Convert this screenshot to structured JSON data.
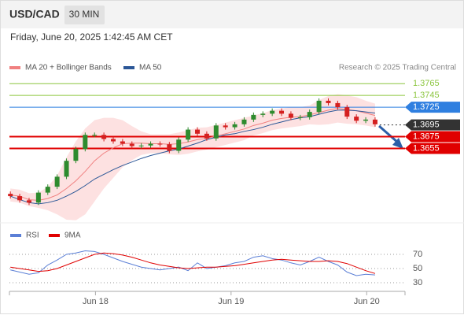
{
  "header": {
    "symbol": "USD/CAD",
    "timeframe": "30 MIN",
    "datetime": "Friday, June 20, 2025 1:42:45 AM CET",
    "credit": "Research © 2025 Trading Central"
  },
  "chart_data": [
    {
      "type": "candlestick",
      "up_color": "#2e8b2e",
      "down_color": "#d42020",
      "open": [
        1.3578,
        1.3574,
        1.3567,
        1.3563,
        1.358,
        1.359,
        1.3607,
        1.3634,
        1.3654,
        1.3678,
        1.3678,
        1.3671,
        1.3667,
        1.3663,
        1.3659,
        1.366,
        1.3663,
        1.3662,
        1.3651,
        1.367,
        1.3687,
        1.368,
        1.3672,
        1.3694,
        1.3691,
        1.3696,
        1.3704,
        1.3712,
        1.3714,
        1.3719,
        1.3714,
        1.3707,
        1.3708,
        1.3717,
        1.3736,
        1.3732,
        1.3725,
        1.3709,
        1.3702,
        1.3704
      ],
      "high": [
        1.3582,
        1.3578,
        1.3571,
        1.3584,
        1.3594,
        1.3611,
        1.3638,
        1.3658,
        1.3682,
        1.3682,
        1.3682,
        1.3675,
        1.3671,
        1.3667,
        1.3664,
        1.3667,
        1.3667,
        1.3666,
        1.3674,
        1.3691,
        1.3691,
        1.3684,
        1.3698,
        1.3698,
        1.37,
        1.3708,
        1.3716,
        1.3718,
        1.3723,
        1.3723,
        1.3718,
        1.3712,
        1.3721,
        1.374,
        1.374,
        1.3736,
        1.3729,
        1.3713,
        1.3708,
        1.3708
      ],
      "low": [
        1.357,
        1.3563,
        1.3559,
        1.3559,
        1.3576,
        1.3586,
        1.3603,
        1.363,
        1.365,
        1.3674,
        1.3667,
        1.3663,
        1.3659,
        1.3655,
        1.3655,
        1.3656,
        1.3658,
        1.3647,
        1.3647,
        1.3666,
        1.3676,
        1.3668,
        1.3668,
        1.3687,
        1.3687,
        1.3692,
        1.37,
        1.3708,
        1.371,
        1.371,
        1.3703,
        1.3703,
        1.3704,
        1.3713,
        1.3728,
        1.3721,
        1.3705,
        1.3698,
        1.3698,
        1.3692
      ],
      "close": [
        1.3574,
        1.3567,
        1.3563,
        1.358,
        1.359,
        1.3607,
        1.3634,
        1.3654,
        1.3678,
        1.3678,
        1.3671,
        1.3667,
        1.3663,
        1.3659,
        1.366,
        1.3663,
        1.3662,
        1.3651,
        1.367,
        1.3687,
        1.368,
        1.3672,
        1.3694,
        1.3691,
        1.3696,
        1.3704,
        1.3712,
        1.3714,
        1.3719,
        1.3714,
        1.3707,
        1.3708,
        1.3717,
        1.3736,
        1.3732,
        1.3725,
        1.3709,
        1.3702,
        1.3704,
        1.3696
      ],
      "overlays": [
        {
          "name": "MA 20 + Bollinger Bands",
          "color": "#f08080",
          "band_color": "#fcd9d9",
          "values": [
            1.3576,
            1.3574,
            1.3568,
            1.3567,
            1.357,
            1.3576,
            1.3587,
            1.36,
            1.3616,
            1.3634,
            1.3647,
            1.3656,
            1.3663,
            1.3664,
            1.3664,
            1.3663,
            1.3663,
            1.3662,
            1.3663,
            1.3666,
            1.367,
            1.3672,
            1.3676,
            1.368,
            1.3684,
            1.3688,
            1.3694,
            1.3698,
            1.3703,
            1.3706,
            1.3708,
            1.3709,
            1.3712,
            1.3716,
            1.372,
            1.3723,
            1.3721,
            1.3719,
            1.3715,
            1.3711
          ],
          "upper": [
            1.3587,
            1.3585,
            1.3579,
            1.358,
            1.359,
            1.3609,
            1.364,
            1.3667,
            1.3689,
            1.3703,
            1.3707,
            1.3707,
            1.3703,
            1.3693,
            1.3684,
            1.3679,
            1.3679,
            1.3679,
            1.3682,
            1.3686,
            1.369,
            1.3691,
            1.3695,
            1.3699,
            1.3703,
            1.3707,
            1.3711,
            1.3715,
            1.372,
            1.3723,
            1.3725,
            1.3725,
            1.3728,
            1.3737,
            1.3744,
            1.3747,
            1.3745,
            1.3742,
            1.3736,
            1.3731
          ],
          "lower": [
            1.3565,
            1.3563,
            1.3557,
            1.3554,
            1.355,
            1.3543,
            1.3534,
            1.3533,
            1.3543,
            1.3565,
            1.3587,
            1.3605,
            1.3623,
            1.3635,
            1.3644,
            1.3647,
            1.3647,
            1.3645,
            1.3644,
            1.3646,
            1.365,
            1.3653,
            1.3657,
            1.3661,
            1.3665,
            1.3669,
            1.3677,
            1.3681,
            1.3686,
            1.3689,
            1.3691,
            1.3693,
            1.3696,
            1.3695,
            1.3696,
            1.3699,
            1.3697,
            1.3696,
            1.3694,
            1.3691
          ]
        },
        {
          "name": "MA 50",
          "color": "#2b5797",
          "values": [
            1.3574,
            1.3568,
            1.3563,
            1.3561,
            1.3563,
            1.3567,
            1.3574,
            1.3582,
            1.3592,
            1.3603,
            1.3611,
            1.3619,
            1.3626,
            1.3632,
            1.3638,
            1.3643,
            1.3647,
            1.3651,
            1.3654,
            1.3659,
            1.3664,
            1.367,
            1.3674,
            1.3678,
            1.368,
            1.3684,
            1.3687,
            1.3691,
            1.3696,
            1.37,
            1.3704,
            1.3707,
            1.3709,
            1.3713,
            1.3717,
            1.372,
            1.372,
            1.3719,
            1.3717,
            1.3715
          ]
        }
      ],
      "levels": [
        {
          "value": 1.3765,
          "color": "#8cc63f",
          "boxed": false,
          "dotted": false
        },
        {
          "value": 1.3745,
          "color": "#8cc63f",
          "boxed": false,
          "dotted": false
        },
        {
          "value": 1.3725,
          "color": "#2f7fe0",
          "boxed": true,
          "dotted": false
        },
        {
          "value": 1.3695,
          "color": "#333333",
          "boxed": true,
          "dotted": true
        },
        {
          "value": 1.3675,
          "color": "#e00000",
          "boxed": true,
          "dotted": false
        },
        {
          "value": 1.3655,
          "color": "#e00000",
          "boxed": true,
          "dotted": false
        }
      ],
      "ylim": [
        1.353,
        1.378
      ],
      "xlim": [
        -0.1,
        42.2
      ],
      "xticks": [
        {
          "value": 9.1,
          "label": "Jun 18"
        },
        {
          "value": 23.6,
          "label": "Jun 19"
        },
        {
          "value": 38.1,
          "label": "Jun 20"
        }
      ]
    },
    {
      "type": "line",
      "xlim": [
        -0.1,
        42.2
      ],
      "ylim": [
        20,
        85
      ],
      "yticks": [
        70,
        50,
        30
      ],
      "series": [
        {
          "name": "RSI",
          "color": "#5b7fd6",
          "values": [
            48,
            45,
            42,
            44,
            55,
            62,
            70,
            72,
            75,
            74,
            70,
            65,
            60,
            56,
            52,
            50,
            48,
            50,
            52,
            47,
            58,
            50,
            52,
            54,
            58,
            60,
            66,
            68,
            64,
            62,
            58,
            55,
            60,
            66,
            60,
            55,
            45,
            40,
            42,
            41
          ]
        },
        {
          "name": "9MA",
          "color": "#e00000",
          "values": [
            52,
            50,
            48,
            46,
            47,
            50,
            55,
            60,
            65,
            70,
            72,
            71,
            69,
            66,
            62,
            58,
            55,
            53,
            51,
            50,
            51,
            52,
            52,
            53,
            54,
            56,
            58,
            60,
            62,
            63,
            62,
            61,
            60,
            60,
            61,
            60,
            57,
            52,
            47,
            43
          ]
        }
      ]
    }
  ]
}
